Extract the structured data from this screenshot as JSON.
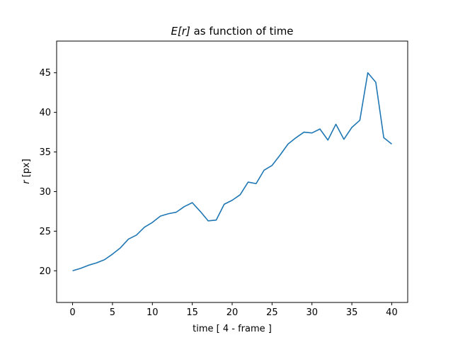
{
  "chart_data": {
    "type": "line",
    "title_parts": {
      "math": "E[r]",
      "rest": " as function of time"
    },
    "xlabel": "time [ 4 - frame ]",
    "ylabel_parts": {
      "math": "r",
      "rest": " [px]"
    },
    "xlim": [
      -2,
      42
    ],
    "ylim": [
      16,
      49
    ],
    "xticks": [
      0,
      5,
      10,
      15,
      20,
      25,
      30,
      35,
      40
    ],
    "yticks": [
      20,
      25,
      30,
      35,
      40,
      45
    ],
    "grid": false,
    "line_color": "#1f77b4",
    "series": [
      {
        "x": [
          0,
          1,
          2,
          3,
          4,
          5,
          6,
          7,
          8,
          9,
          10,
          11,
          12,
          13,
          14,
          15,
          16,
          17,
          18,
          19,
          20,
          21,
          22,
          23,
          24,
          25,
          26,
          27,
          28,
          29,
          30,
          31,
          32,
          33,
          34,
          35,
          36,
          37,
          38,
          39,
          40
        ],
        "values": [
          20.0,
          20.3,
          20.7,
          21.0,
          21.4,
          22.1,
          22.9,
          24.0,
          24.5,
          25.5,
          26.1,
          26.9,
          27.2,
          27.4,
          28.1,
          28.6,
          27.5,
          26.3,
          26.4,
          28.4,
          28.9,
          29.6,
          31.2,
          31.0,
          32.7,
          33.3,
          34.6,
          36.0,
          36.8,
          37.5,
          37.4,
          37.9,
          36.5,
          38.5,
          36.6,
          38.1,
          39.0,
          45.0,
          43.8,
          36.8,
          36.0
        ]
      }
    ]
  }
}
